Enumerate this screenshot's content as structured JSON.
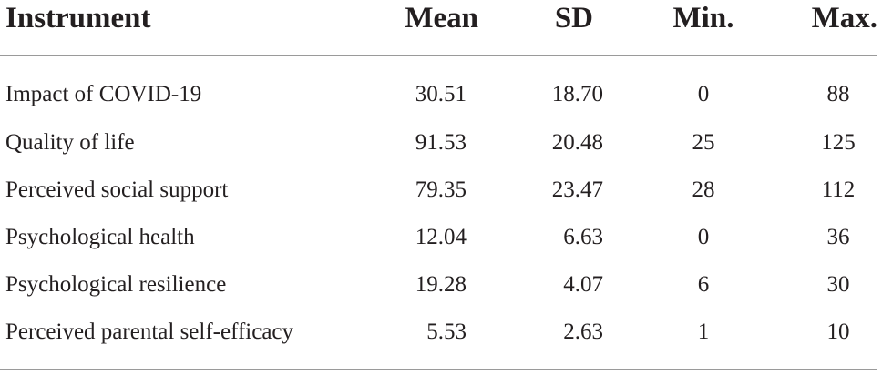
{
  "table": {
    "headers": {
      "instrument": "Instrument",
      "mean": "Mean",
      "sd": "SD",
      "min": "Min.",
      "max": "Max."
    },
    "rows": [
      {
        "instrument": "Impact of COVID-19",
        "mean": "30.51",
        "sd": "18.70",
        "min": "0",
        "max": "88"
      },
      {
        "instrument": "Quality of life",
        "mean": "91.53",
        "sd": "20.48",
        "min": "25",
        "max": "125"
      },
      {
        "instrument": "Perceived social support",
        "mean": "79.35",
        "sd": "23.47",
        "min": "28",
        "max": "112"
      },
      {
        "instrument": "Psychological health",
        "mean": "12.04",
        "sd": "6.63",
        "min": "0",
        "max": "36"
      },
      {
        "instrument": "Psychological resilience",
        "mean": "19.28",
        "sd": "4.07",
        "min": "6",
        "max": "30"
      },
      {
        "instrument": "Perceived parental self-efficacy",
        "mean": "5.53",
        "sd": "2.63",
        "min": "1",
        "max": "10"
      }
    ]
  }
}
